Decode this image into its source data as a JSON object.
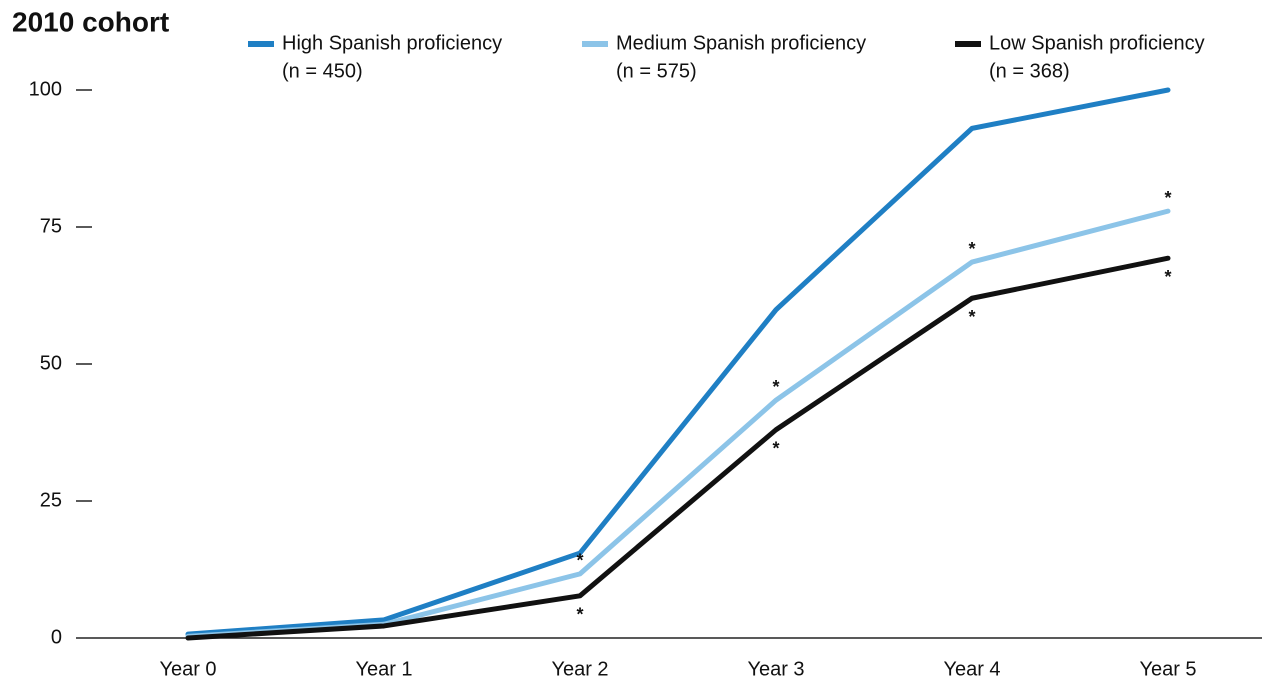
{
  "chart_data": {
    "type": "line",
    "title": "2010 cohort",
    "categories": [
      "Year 0",
      "Year 1",
      "Year 2",
      "Year 3",
      "Year 4",
      "Year 5"
    ],
    "ylim": [
      0,
      100
    ],
    "yticks": [
      0,
      25,
      50,
      75,
      100
    ],
    "legend": "top",
    "series": [
      {
        "name": "High Spanish proficiency",
        "sample": "(n = 450)",
        "color": "#1f7fc4",
        "values": [
          0.7,
          3.3,
          15.5,
          59.9,
          93,
          100
        ]
      },
      {
        "name": "Medium Spanish proficiency",
        "sample": "(n = 575)",
        "color": "#8cc4e8",
        "values": [
          0.3,
          2.5,
          11.7,
          43.4,
          68.6,
          77.9
        ],
        "significance": [
          null,
          null,
          "*",
          "*",
          "*",
          "*"
        ]
      },
      {
        "name": "Low Spanish proficiency",
        "sample": "(n = 368)",
        "color": "#111111",
        "values": [
          0,
          2.2,
          7.7,
          38,
          62,
          69.3
        ],
        "significance": [
          null,
          null,
          "*",
          "*",
          "*",
          "*"
        ]
      }
    ]
  }
}
